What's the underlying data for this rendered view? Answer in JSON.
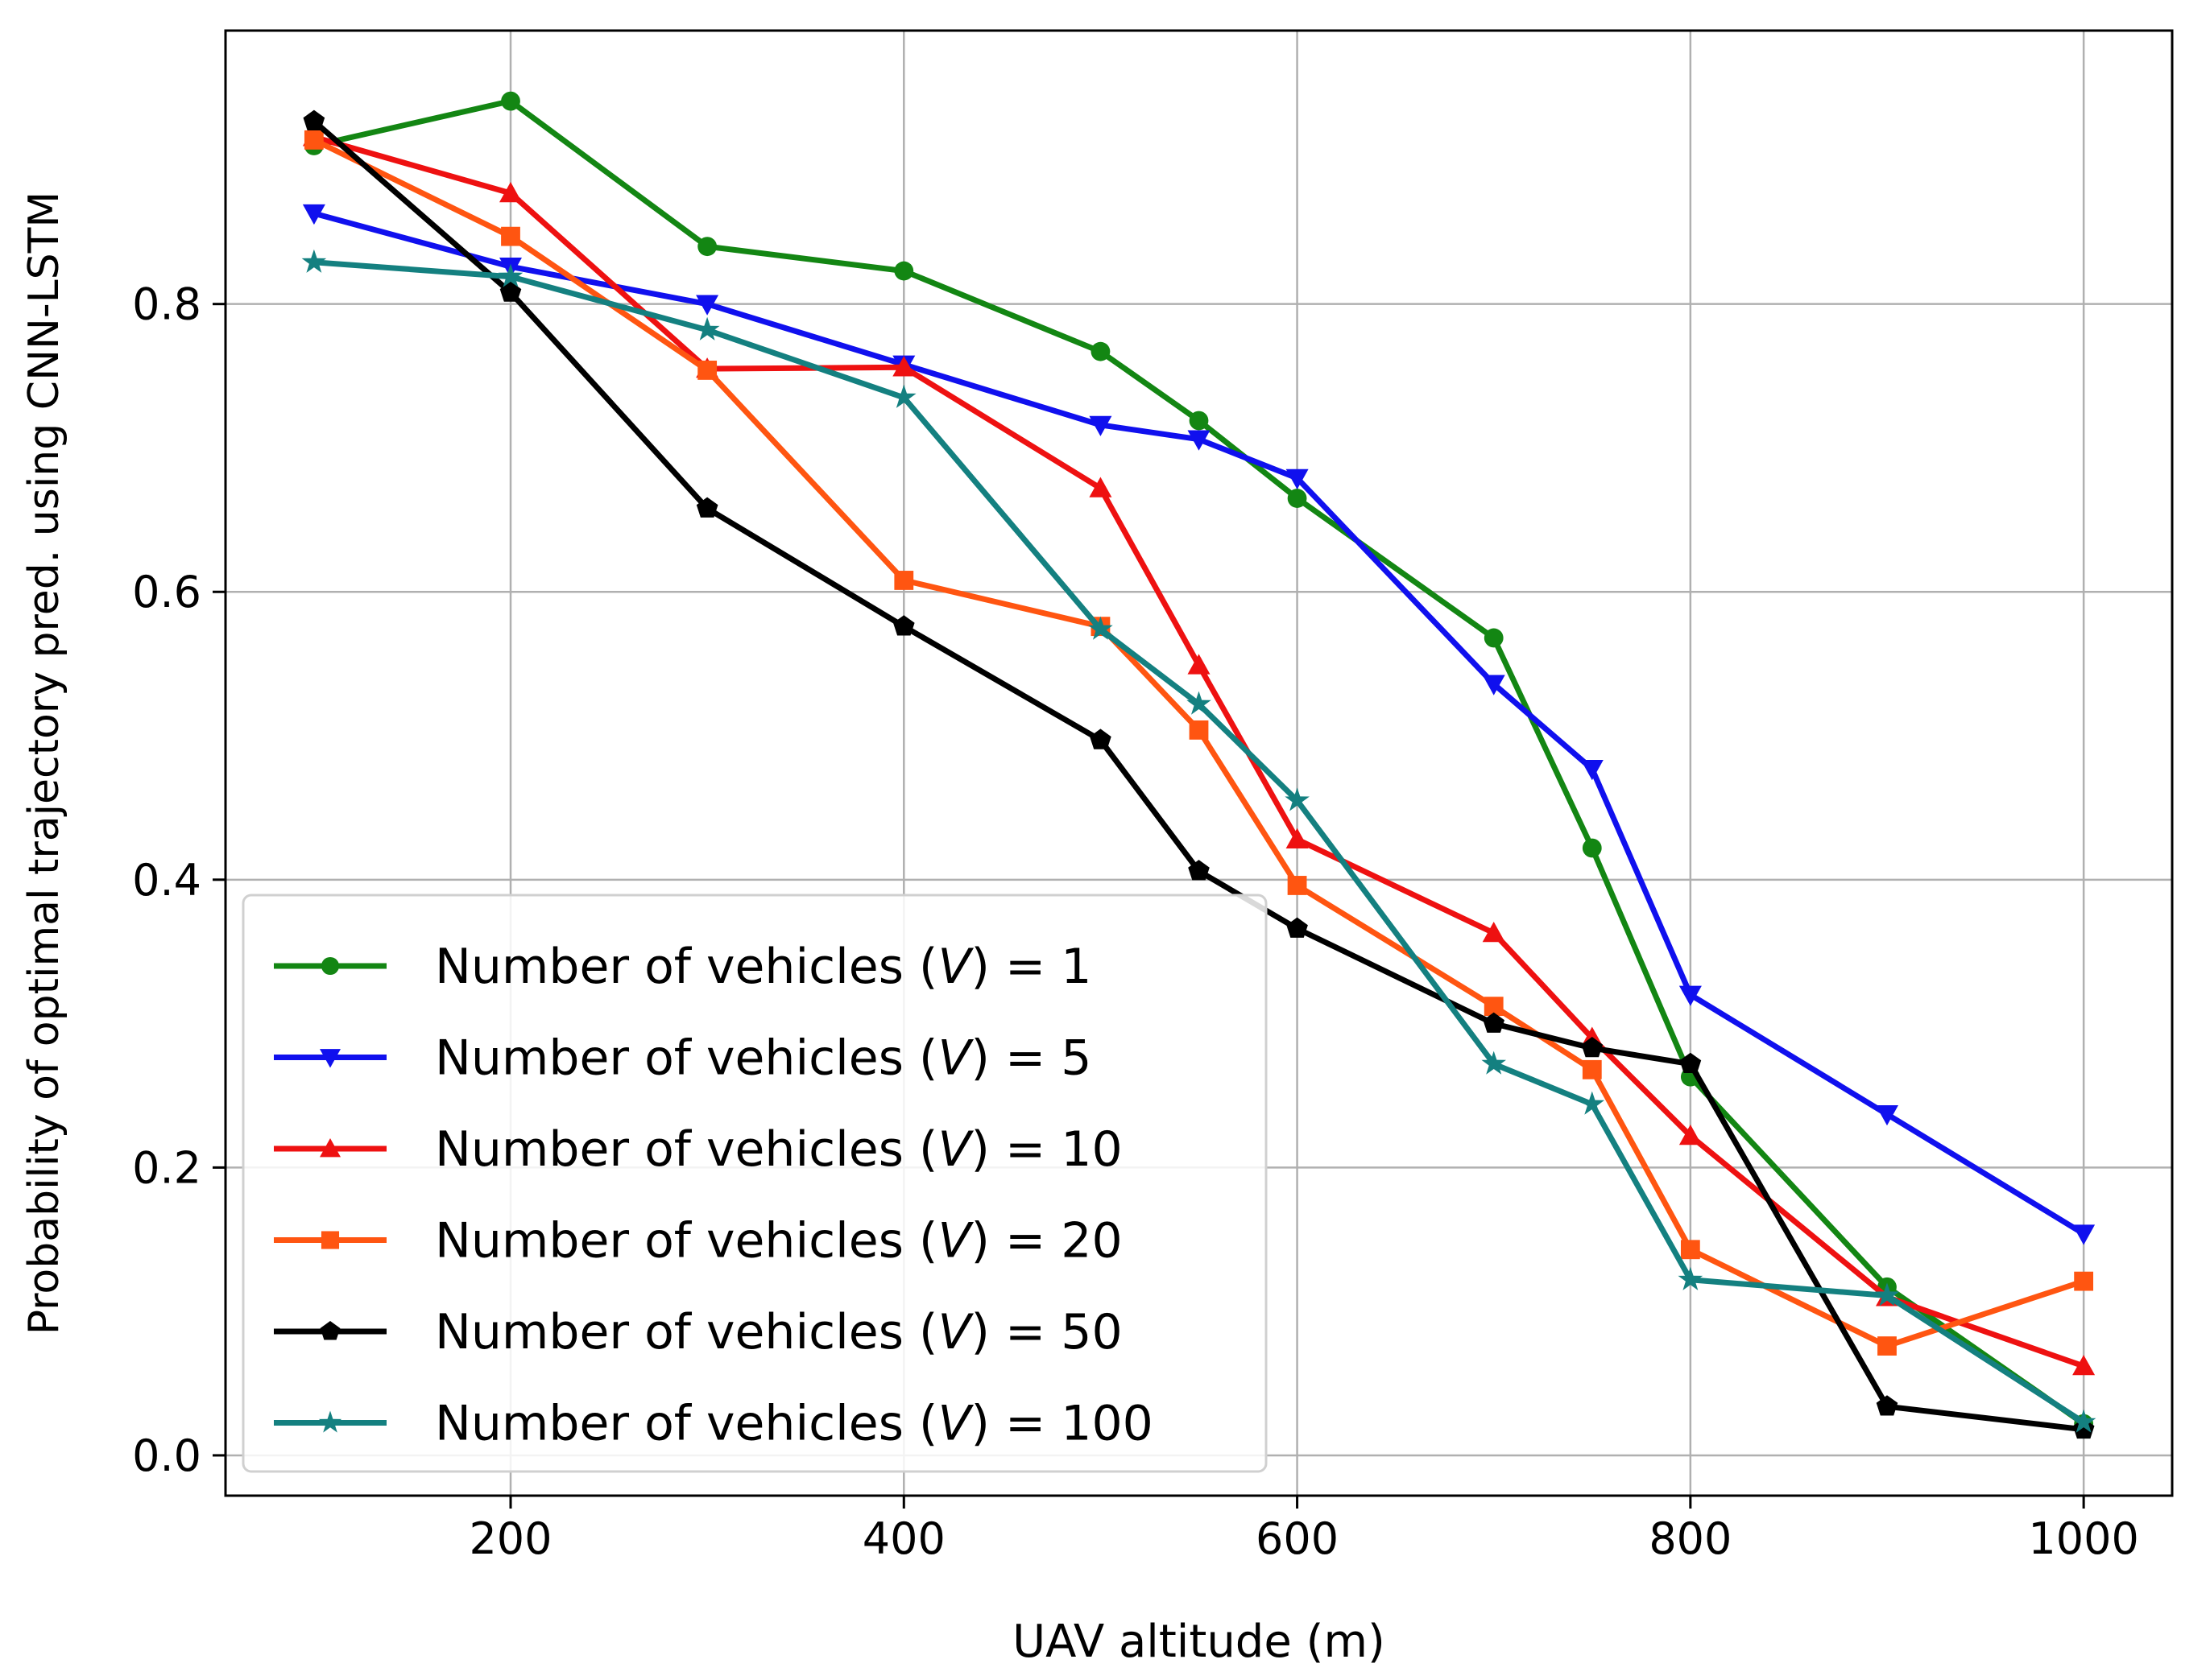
{
  "chart_data": {
    "type": "line",
    "title": "",
    "xlabel": "UAV altitude (m)",
    "ylabel": "Probability of optimal trajectory pred. using CNN-LSTM",
    "xlim": [
      55,
      1045
    ],
    "ylim": [
      -0.028,
      0.99
    ],
    "x_ticks": [
      200,
      400,
      600,
      800,
      1000
    ],
    "x_tick_labels": [
      "200",
      "400",
      "600",
      "800",
      "1000"
    ],
    "y_ticks": [
      0.0,
      0.2,
      0.4,
      0.6,
      0.8
    ],
    "y_tick_labels": [
      "0.0",
      "0.2",
      "0.4",
      "0.6",
      "0.8"
    ],
    "grid": true,
    "legend_position": "lower-left",
    "legend_prefix": "Number of vehicles (",
    "legend_var": "V",
    "x": [
      100,
      200,
      300,
      400,
      500,
      550,
      600,
      700,
      750,
      800,
      900,
      1000
    ],
    "series": [
      {
        "name": "Number of vehicles (V) = 1",
        "value_label": "1",
        "color": "#138613",
        "marker": "circle",
        "values": [
          0.91,
          0.941,
          0.84,
          0.823,
          0.767,
          0.719,
          0.665,
          0.568,
          0.422,
          0.263,
          0.117,
          0.022
        ]
      },
      {
        "name": "Number of vehicles (V) = 5",
        "value_label": "5",
        "color": "#1010ee",
        "marker": "triangle-down",
        "values": [
          0.863,
          0.826,
          0.8,
          0.758,
          0.716,
          0.706,
          0.679,
          0.536,
          0.477,
          0.32,
          0.237,
          0.154
        ]
      },
      {
        "name": "Number of vehicles (V) = 10",
        "value_label": "10",
        "color": "#ee1111",
        "marker": "triangle-up",
        "values": [
          0.916,
          0.877,
          0.755,
          0.756,
          0.672,
          0.549,
          0.428,
          0.363,
          0.29,
          0.222,
          0.11,
          0.062
        ]
      },
      {
        "name": "Number of vehicles (V) = 20",
        "value_label": "20",
        "color": "#ff5511",
        "marker": "square",
        "values": [
          0.914,
          0.847,
          0.754,
          0.608,
          0.576,
          0.504,
          0.396,
          0.312,
          0.268,
          0.143,
          0.076,
          0.121
        ]
      },
      {
        "name": "Number of vehicles (V) = 50",
        "value_label": "50",
        "color": "#000000",
        "marker": "pentagon",
        "values": [
          0.927,
          0.808,
          0.658,
          0.576,
          0.497,
          0.406,
          0.366,
          0.3,
          0.283,
          0.272,
          0.034,
          0.018
        ]
      },
      {
        "name": "Number of vehicles (V) = 100",
        "value_label": "100",
        "color": "#148080",
        "marker": "star",
        "values": [
          0.829,
          0.819,
          0.782,
          0.735,
          0.574,
          0.522,
          0.455,
          0.272,
          0.244,
          0.122,
          0.111,
          0.023
        ]
      }
    ]
  }
}
